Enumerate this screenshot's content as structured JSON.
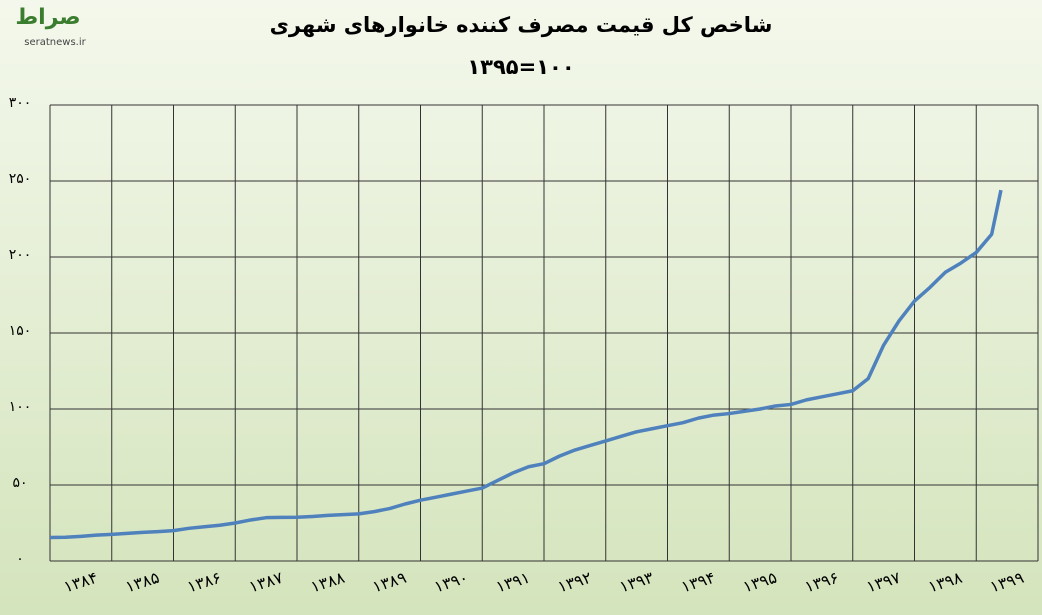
{
  "logo": {
    "name": "صراط",
    "site": "seratnews.ir"
  },
  "chart_data": {
    "type": "line",
    "title": "شاخص کل قیمت مصرف کننده خانوارهای شهری",
    "subtitle": "۱۳۹۵=۱۰۰",
    "x": [
      1384,
      1384.25,
      1384.5,
      1384.75,
      1385,
      1385.25,
      1385.5,
      1385.75,
      1386,
      1386.25,
      1386.5,
      1386.75,
      1387,
      1387.25,
      1387.5,
      1387.75,
      1388,
      1388.25,
      1388.5,
      1388.75,
      1389,
      1389.25,
      1389.5,
      1389.75,
      1390,
      1390.25,
      1390.5,
      1390.75,
      1391,
      1391.25,
      1391.5,
      1391.75,
      1392,
      1392.25,
      1392.5,
      1392.75,
      1393,
      1393.25,
      1393.5,
      1393.75,
      1394,
      1394.25,
      1394.5,
      1394.75,
      1395,
      1395.25,
      1395.5,
      1395.75,
      1396,
      1396.25,
      1396.5,
      1396.75,
      1397,
      1397.25,
      1397.5,
      1397.75,
      1398,
      1398.25,
      1398.5,
      1398.75,
      1399,
      1399.25,
      1399.4
    ],
    "series": [
      {
        "color": "#4f81bd",
        "values": [
          15.5,
          15.6,
          16.2,
          17,
          17.5,
          18.2,
          18.8,
          19.3,
          20,
          21.5,
          22.5,
          23.5,
          25,
          27,
          28.5,
          28.7,
          28.8,
          29.3,
          30,
          30.5,
          31,
          32.5,
          34.5,
          37.5,
          40,
          42,
          44,
          46,
          48,
          53,
          58,
          62,
          64,
          69,
          73,
          76,
          79,
          82,
          85,
          87,
          89,
          91,
          94,
          96,
          97,
          98.5,
          100,
          102,
          103,
          106,
          108,
          110,
          112,
          120,
          142,
          158,
          171,
          180,
          190,
          196,
          203,
          215,
          244
        ]
      }
    ],
    "xlim": [
      1384,
      1400
    ],
    "xticks": [
      {
        "value": 1384,
        "label": "۱۳۸۴"
      },
      {
        "value": 1385,
        "label": "۱۳۸۵"
      },
      {
        "value": 1386,
        "label": "۱۳۸۶"
      },
      {
        "value": 1387,
        "label": "۱۳۸۷"
      },
      {
        "value": 1388,
        "label": "۱۳۸۸"
      },
      {
        "value": 1389,
        "label": "۱۳۸۹"
      },
      {
        "value": 1390,
        "label": "۱۳۹۰"
      },
      {
        "value": 1391,
        "label": "۱۳۹۱"
      },
      {
        "value": 1392,
        "label": "۱۳۹۲"
      },
      {
        "value": 1393,
        "label": "۱۳۹۳"
      },
      {
        "value": 1394,
        "label": "۱۳۹۴"
      },
      {
        "value": 1395,
        "label": "۱۳۹۵"
      },
      {
        "value": 1396,
        "label": "۱۳۹۶"
      },
      {
        "value": 1397,
        "label": "۱۳۹۷"
      },
      {
        "value": 1398,
        "label": "۱۳۹۸"
      },
      {
        "value": 1399,
        "label": "۱۳۹۹"
      }
    ],
    "ylim": [
      0,
      300
    ],
    "yticks": [
      {
        "value": 0,
        "label": "۰"
      },
      {
        "value": 50,
        "label": "۵۰"
      },
      {
        "value": 100,
        "label": "۱۰۰"
      },
      {
        "value": 150,
        "label": "۱۵۰"
      },
      {
        "value": 200,
        "label": "۲۰۰"
      },
      {
        "value": 250,
        "label": "۲۵۰"
      },
      {
        "value": 300,
        "label": "۳۰۰"
      }
    ],
    "grid": true
  }
}
